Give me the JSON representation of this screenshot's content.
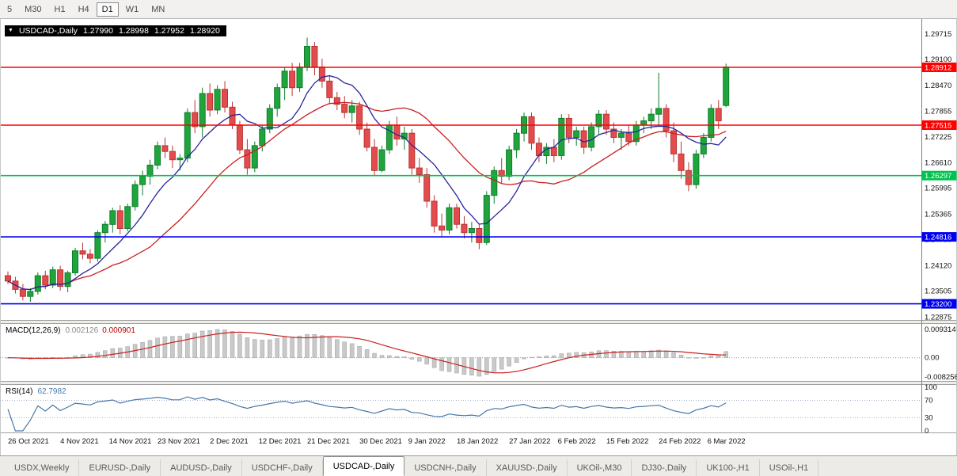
{
  "toolbar": {
    "timeframes": [
      "5",
      "M30",
      "H1",
      "H4",
      "D1",
      "W1",
      "MN"
    ],
    "active": "D1"
  },
  "chart_header": {
    "dropdown_icon": "▼",
    "symbol": "USDCAD-,Daily",
    "open": "1.27990",
    "high": "1.28998",
    "low": "1.27952",
    "close": "1.28920"
  },
  "price_axis_labels": [
    "1.29715",
    "1.29100",
    "1.28470",
    "1.27855",
    "1.27225",
    "1.26610",
    "1.25995",
    "1.25365",
    "1.24750",
    "1.24120",
    "1.23505",
    "1.22875"
  ],
  "macd": {
    "label": "MACD(12,26,9)",
    "value_main": "0.002126",
    "value_signal": "0.000901",
    "axis": [
      "0.009314",
      "0.00",
      "-0.008256"
    ]
  },
  "rsi": {
    "label": "RSI(14)",
    "value": "62.7982",
    "axis": [
      "100",
      "70",
      "30",
      "0"
    ],
    "levels": [
      70,
      30
    ]
  },
  "date_axis": [
    {
      "label": "26 Oct 2021",
      "idx": 0
    },
    {
      "label": "4 Nov 2021",
      "idx": 7
    },
    {
      "label": "14 Nov 2021",
      "idx": 13.5
    },
    {
      "label": "23 Nov 2021",
      "idx": 20
    },
    {
      "label": "2 Dec 2021",
      "idx": 27
    },
    {
      "label": "12 Dec 2021",
      "idx": 33.5
    },
    {
      "label": "21 Dec 2021",
      "idx": 40
    },
    {
      "label": "30 Dec 2021",
      "idx": 47
    },
    {
      "label": "9 Jan 2022",
      "idx": 53.5
    },
    {
      "label": "18 Jan 2022",
      "idx": 60
    },
    {
      "label": "27 Jan 2022",
      "idx": 67
    },
    {
      "label": "6 Feb 2022",
      "idx": 73.5
    },
    {
      "label": "15 Feb 2022",
      "idx": 80
    },
    {
      "label": "24 Feb 2022",
      "idx": 87
    },
    {
      "label": "6 Mar 2022",
      "idx": 93.5
    }
  ],
  "tabs": [
    "USDX,Weekly",
    "EURUSD-,Daily",
    "AUDUSD-,Daily",
    "USDCHF-,Daily",
    "USDCAD-,Daily",
    "USDCNH-,Daily",
    "XAUUSD-,Daily",
    "UKOil-,M30",
    "DJ30-,Daily",
    "UK100-,H1",
    "USOil-,H1"
  ],
  "active_tab": "USDCAD-,Daily",
  "chart_data": {
    "type": "candlestick",
    "symbol": "USDCAD",
    "timeframe": "Daily",
    "last_ohlc": {
      "open": 1.2799,
      "high": 1.28998,
      "low": 1.27952,
      "close": 1.2892
    },
    "price_range": {
      "max": 1.3006,
      "min": 1.2281
    },
    "candles": [
      [
        1.2388,
        1.2398,
        1.2368,
        1.2375
      ],
      [
        1.2375,
        1.2385,
        1.2345,
        1.2355
      ],
      [
        1.2355,
        1.2368,
        1.2328,
        1.2338
      ],
      [
        1.2338,
        1.2358,
        1.2325,
        1.235
      ],
      [
        1.235,
        1.2396,
        1.2342,
        1.2388
      ],
      [
        1.2388,
        1.24,
        1.2355,
        1.2365
      ],
      [
        1.2365,
        1.241,
        1.2358,
        1.2402
      ],
      [
        1.2402,
        1.2412,
        1.2352,
        1.2362
      ],
      [
        1.2362,
        1.24,
        1.2348,
        1.2395
      ],
      [
        1.2395,
        1.2455,
        1.2388,
        1.2448
      ],
      [
        1.2448,
        1.2468,
        1.2428,
        1.244
      ],
      [
        1.244,
        1.2452,
        1.2418,
        1.243
      ],
      [
        1.243,
        1.2498,
        1.2422,
        1.2492
      ],
      [
        1.2492,
        1.252,
        1.2468,
        1.2512
      ],
      [
        1.2512,
        1.2552,
        1.2492,
        1.2545
      ],
      [
        1.2545,
        1.2558,
        1.2488,
        1.2502
      ],
      [
        1.2502,
        1.2562,
        1.2495,
        1.2555
      ],
      [
        1.2555,
        1.2618,
        1.2545,
        1.2608
      ],
      [
        1.2608,
        1.2642,
        1.2582,
        1.2628
      ],
      [
        1.2628,
        1.2668,
        1.2608,
        1.2655
      ],
      [
        1.2655,
        1.2712,
        1.2645,
        1.2702
      ],
      [
        1.2702,
        1.2722,
        1.2672,
        1.2688
      ],
      [
        1.2688,
        1.2702,
        1.2648,
        1.2668
      ],
      [
        1.2668,
        1.2682,
        1.2642,
        1.2672
      ],
      [
        1.2672,
        1.2792,
        1.2662,
        1.2782
      ],
      [
        1.2782,
        1.2812,
        1.2732,
        1.2748
      ],
      [
        1.2748,
        1.2842,
        1.2722,
        1.2828
      ],
      [
        1.2828,
        1.2852,
        1.2772,
        1.2788
      ],
      [
        1.2788,
        1.2848,
        1.2778,
        1.2838
      ],
      [
        1.2838,
        1.2858,
        1.2782,
        1.2795
      ],
      [
        1.2795,
        1.2808,
        1.2742,
        1.2752
      ],
      [
        1.2752,
        1.2762,
        1.2682,
        1.2692
      ],
      [
        1.2692,
        1.2718,
        1.2632,
        1.2648
      ],
      [
        1.2648,
        1.2712,
        1.2638,
        1.2702
      ],
      [
        1.2702,
        1.2752,
        1.2688,
        1.2742
      ],
      [
        1.2742,
        1.2802,
        1.2732,
        1.2792
      ],
      [
        1.2792,
        1.2852,
        1.2772,
        1.2842
      ],
      [
        1.2842,
        1.2892,
        1.2812,
        1.2882
      ],
      [
        1.2882,
        1.2902,
        1.2822,
        1.2842
      ],
      [
        1.2842,
        1.2902,
        1.2832,
        1.2892
      ],
      [
        1.2892,
        1.2963,
        1.2882,
        1.2942
      ],
      [
        1.2942,
        1.2952,
        1.2872,
        1.2892
      ],
      [
        1.2892,
        1.2912,
        1.2842,
        1.2858
      ],
      [
        1.2858,
        1.2872,
        1.2802,
        1.2818
      ],
      [
        1.2818,
        1.2832,
        1.2788,
        1.2802
      ],
      [
        1.2802,
        1.2822,
        1.2768,
        1.2782
      ],
      [
        1.2782,
        1.2812,
        1.2758,
        1.2798
      ],
      [
        1.2798,
        1.2808,
        1.2728,
        1.2742
      ],
      [
        1.2742,
        1.2758,
        1.2688,
        1.2698
      ],
      [
        1.2698,
        1.2718,
        1.2628,
        1.2642
      ],
      [
        1.2642,
        1.2702,
        1.2638,
        1.2692
      ],
      [
        1.2692,
        1.2762,
        1.2682,
        1.2752
      ],
      [
        1.2752,
        1.2772,
        1.2702,
        1.2718
      ],
      [
        1.2718,
        1.2748,
        1.2692,
        1.2732
      ],
      [
        1.2732,
        1.2742,
        1.2632,
        1.2648
      ],
      [
        1.2648,
        1.2672,
        1.2612,
        1.2632
      ],
      [
        1.2632,
        1.2648,
        1.2552,
        1.2568
      ],
      [
        1.2568,
        1.2582,
        1.2492,
        1.2508
      ],
      [
        1.2508,
        1.2538,
        1.2482,
        1.2498
      ],
      [
        1.2498,
        1.2562,
        1.2488,
        1.2552
      ],
      [
        1.2552,
        1.2562,
        1.2502,
        1.2512
      ],
      [
        1.2512,
        1.2532,
        1.2478,
        1.2492
      ],
      [
        1.2492,
        1.2518,
        1.2468,
        1.2502
      ],
      [
        1.2502,
        1.2512,
        1.2452,
        1.2468
      ],
      [
        1.2468,
        1.2592,
        1.2462,
        1.2582
      ],
      [
        1.2582,
        1.2652,
        1.2562,
        1.2642
      ],
      [
        1.2642,
        1.2672,
        1.2612,
        1.2628
      ],
      [
        1.2628,
        1.2702,
        1.2618,
        1.2692
      ],
      [
        1.2692,
        1.2742,
        1.2672,
        1.2732
      ],
      [
        1.2732,
        1.2782,
        1.2712,
        1.2772
      ],
      [
        1.2772,
        1.2782,
        1.2692,
        1.2708
      ],
      [
        1.2708,
        1.2722,
        1.2662,
        1.2678
      ],
      [
        1.2678,
        1.2708,
        1.2658,
        1.2698
      ],
      [
        1.2698,
        1.2718,
        1.2662,
        1.2678
      ],
      [
        1.2678,
        1.2778,
        1.2668,
        1.2768
      ],
      [
        1.2768,
        1.2778,
        1.2708,
        1.2722
      ],
      [
        1.2722,
        1.2748,
        1.2702,
        1.2738
      ],
      [
        1.2738,
        1.2748,
        1.2682,
        1.2698
      ],
      [
        1.2698,
        1.2758,
        1.2688,
        1.2748
      ],
      [
        1.2748,
        1.2788,
        1.2728,
        1.2778
      ],
      [
        1.2778,
        1.2788,
        1.2728,
        1.2742
      ],
      [
        1.2742,
        1.2758,
        1.2708,
        1.2722
      ],
      [
        1.2722,
        1.2742,
        1.2692,
        1.2732
      ],
      [
        1.2732,
        1.2752,
        1.2702,
        1.2712
      ],
      [
        1.2712,
        1.2762,
        1.2702,
        1.2752
      ],
      [
        1.2752,
        1.2772,
        1.2732,
        1.2762
      ],
      [
        1.2762,
        1.2792,
        1.2742,
        1.2778
      ],
      [
        1.2778,
        1.2878,
        1.2752,
        1.2792
      ],
      [
        1.2792,
        1.2802,
        1.2722,
        1.2738
      ],
      [
        1.2738,
        1.2758,
        1.2662,
        1.2682
      ],
      [
        1.2682,
        1.2712,
        1.2622,
        1.2642
      ],
      [
        1.2642,
        1.2662,
        1.2592,
        1.2608
      ],
      [
        1.2608,
        1.2692,
        1.2598,
        1.2682
      ],
      [
        1.2682,
        1.2732,
        1.2672,
        1.2722
      ],
      [
        1.2722,
        1.2802,
        1.2712,
        1.2792
      ],
      [
        1.2792,
        1.2812,
        1.2742,
        1.2762
      ],
      [
        1.2799,
        1.29,
        1.2795,
        1.2892
      ]
    ],
    "moving_averages": [
      {
        "name": "fast",
        "period": 8,
        "color": "#26269B"
      },
      {
        "name": "slow",
        "period": 20,
        "color": "#C82020"
      }
    ],
    "horizontal_lines": [
      {
        "price": 1.28912,
        "label": "1.28912",
        "color": "#FF0000"
      },
      {
        "price": 1.27515,
        "label": "1.27515",
        "color": "#FF0000"
      },
      {
        "price": 1.26297,
        "label": "1.26297",
        "color": "#00C24E"
      },
      {
        "price": 1.24816,
        "label": "1.24816",
        "color": "#0000F0"
      },
      {
        "price": 1.232,
        "label": "1.23200",
        "color": "#0000F0"
      }
    ],
    "indicators": [
      {
        "name": "MACD",
        "params": [
          12,
          26,
          9
        ],
        "main": 0.002126,
        "signal": 0.000901
      },
      {
        "name": "RSI",
        "params": [
          14
        ],
        "value": 62.7982
      }
    ],
    "colors": {
      "up": "#1FA53C",
      "up_border": "#0F7D2B",
      "down": "#E34C4C",
      "down_border": "#B93333",
      "macd_histogram": "#C9C9C9",
      "macd_histogram_border": "#ABABAB",
      "macd_signal": "#C82020",
      "rsi_line": "#4878A8",
      "background": "#FFFFFF",
      "axis_text": "#111111"
    }
  }
}
